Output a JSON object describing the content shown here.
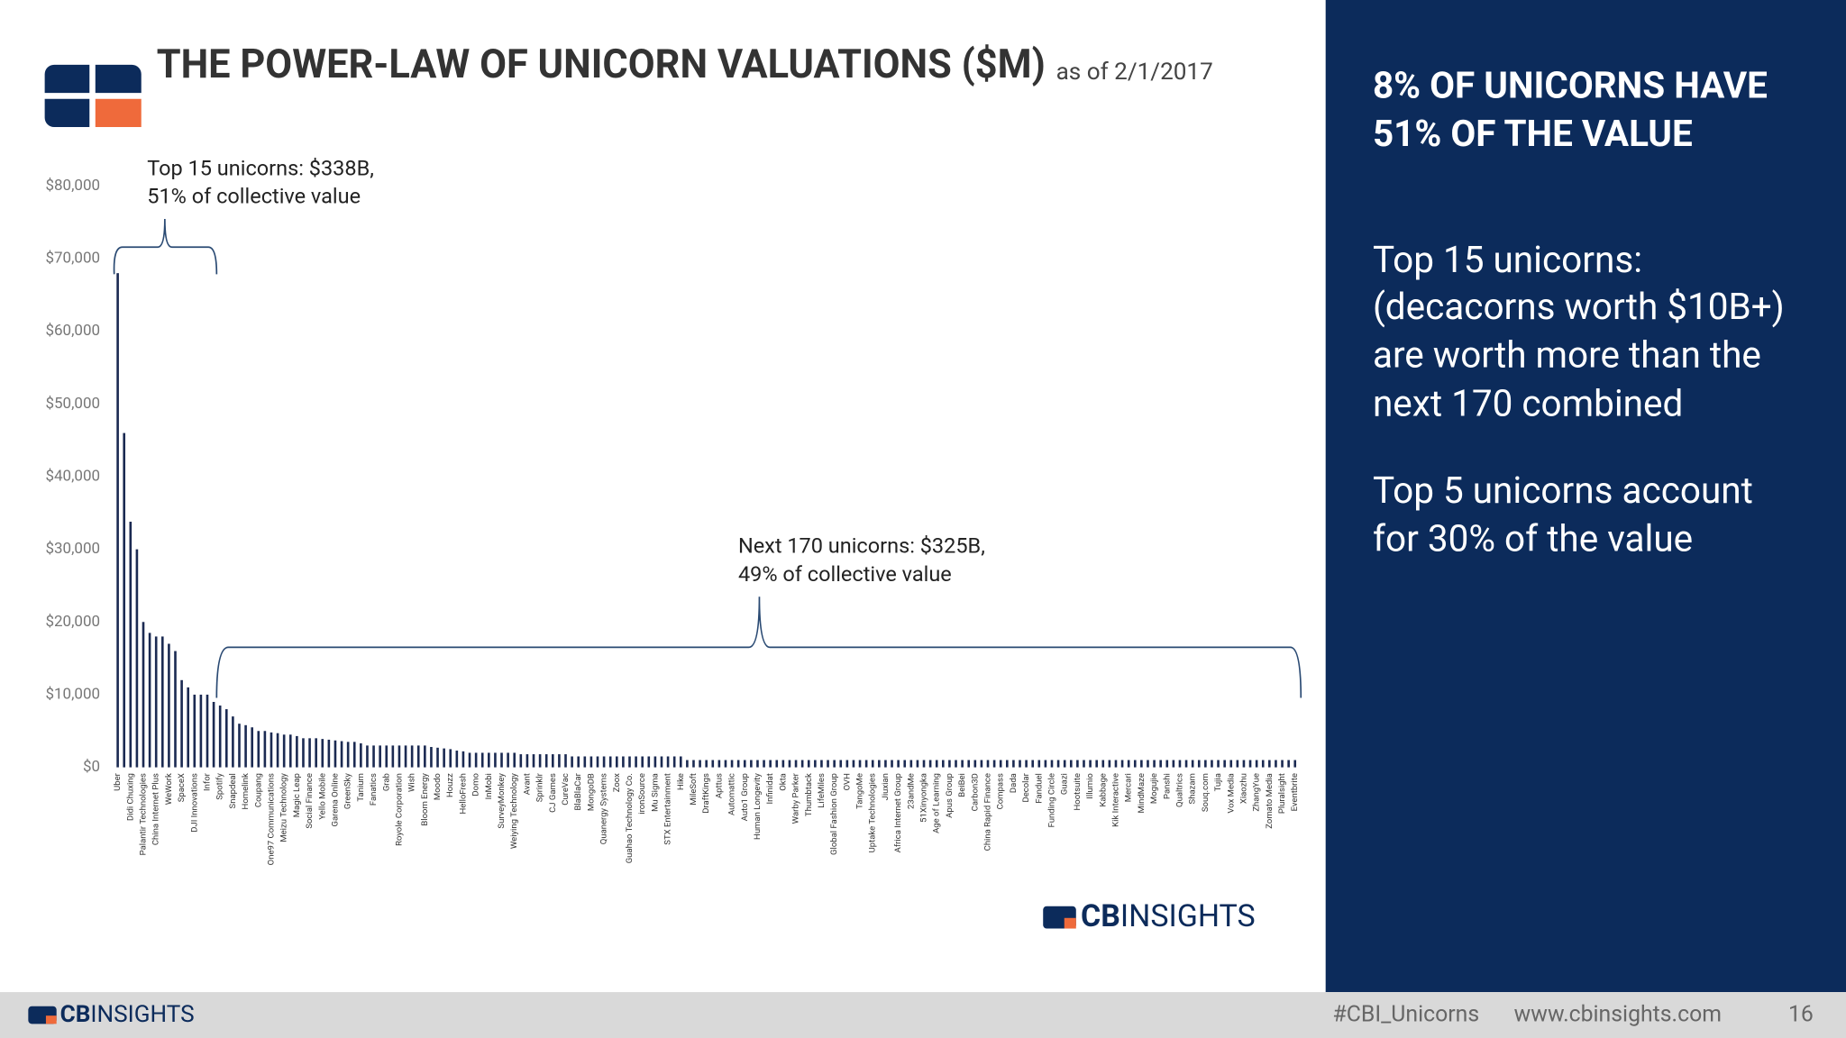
{
  "chart_data": {
    "type": "bar",
    "title": "THE POWER-LAW OF UNICORN VALUATIONS ($M)",
    "subtitle": "as of 2/1/2017",
    "annotations": [
      {
        "lines": [
          "Top 15 unicorns: $338B,",
          "51% of collective value"
        ]
      },
      {
        "lines": [
          "Next 170 unicorns: $325B,",
          "49% of collective value"
        ]
      }
    ],
    "color": "#1b2a52",
    "ylim": [
      0,
      80000
    ],
    "yticks": [
      {
        "value": 0,
        "label": "$0"
      },
      {
        "value": 10000,
        "label": "$10,000"
      },
      {
        "value": 20000,
        "label": "$20,000"
      },
      {
        "value": 30000,
        "label": "$30,000"
      },
      {
        "value": 40000,
        "label": "$40,000"
      },
      {
        "value": 50000,
        "label": "$50,000"
      },
      {
        "value": 60000,
        "label": "$60,000"
      },
      {
        "value": 70000,
        "label": "$70,000"
      },
      {
        "value": 80000,
        "label": "$80,000"
      }
    ],
    "categories": [
      "Uber",
      null,
      "Didi Chuxing",
      null,
      "Palantir Technologies",
      null,
      "China Internet Plus",
      null,
      "WeWork",
      null,
      "SpaceX",
      null,
      "DJI Innovations",
      null,
      "Infor",
      null,
      "Spotify",
      null,
      "Snapdeal",
      null,
      "Homelink",
      null,
      "Coupang",
      null,
      "One97 Communications",
      null,
      "Meizu Technology",
      null,
      "Magic Leap",
      null,
      "Social Finance",
      null,
      "Yello Mobile",
      null,
      "Garena Online",
      null,
      "GreenSky",
      null,
      "Tanium",
      null,
      "Fanatics",
      null,
      "Grab",
      null,
      "Royole Corporation",
      null,
      "Wish",
      null,
      "Bloom Energy",
      null,
      "Moodo",
      null,
      "Houzz",
      null,
      "HelloFresh",
      null,
      "Domo",
      null,
      "InMobi",
      null,
      "SurveyMonkey",
      null,
      "Weiying Technology",
      null,
      "Avant",
      null,
      "Sprinklr",
      null,
      "CJ Games",
      null,
      "CureVac",
      null,
      "BlaBlaCar",
      null,
      "MongoDB",
      null,
      "Quanergy Systems",
      null,
      "Zoox",
      null,
      "Guahao Technology Co.",
      null,
      "ironSource",
      null,
      "Mu Sigma",
      null,
      "STX Entertainment",
      null,
      "Hike",
      null,
      "MileSoft",
      null,
      "DraftKings",
      null,
      "Apttus",
      null,
      "Automattic",
      null,
      "Auto1 Group",
      null,
      "Human Longevity",
      null,
      "Infinidat",
      null,
      "Okta",
      null,
      "Warby Parker",
      null,
      "Thumbtack",
      null,
      "LifeMiles",
      null,
      "Global Fashion Group",
      null,
      "OVH",
      null,
      "TangoMe",
      null,
      "Uptake Technologies",
      null,
      "Jiuxian",
      null,
      "Africa Internet Group",
      null,
      "23andMe",
      null,
      "51Xinyongka",
      null,
      "Age of Learning",
      null,
      "Apus Group",
      null,
      "BeiBei",
      null,
      "Carbon3D",
      null,
      "China Rapid Finance",
      null,
      "Compass",
      null,
      "Dada",
      null,
      "Decolar",
      null,
      "Fanduel",
      null,
      "Funding Circle",
      null,
      "Guazi",
      null,
      "Hootsuite",
      null,
      "Illumio",
      null,
      "Kabbage",
      null,
      "Kik Interactive",
      null,
      "Mercari",
      null,
      "MindMaze",
      null,
      "Mogujie",
      null,
      "Panshi",
      null,
      "Qualtrics",
      null,
      "Shazam",
      null,
      "Souq.com",
      null,
      "Tujia",
      null,
      "Vox Media",
      null,
      "Xiaozhu",
      null,
      "ZhangYue",
      null,
      "Zomato Media",
      null,
      "Pluralsight",
      null,
      "Eventbrite"
    ],
    "values": [
      68000,
      46000,
      33800,
      30000,
      20000,
      18500,
      18000,
      18000,
      17000,
      16000,
      12000,
      11000,
      10000,
      10000,
      10000,
      9000,
      8500,
      8000,
      7000,
      6000,
      5800,
      5500,
      5000,
      5000,
      4800,
      4700,
      4500,
      4500,
      4300,
      4000,
      4000,
      4000,
      3900,
      3800,
      3700,
      3600,
      3500,
      3500,
      3300,
      3000,
      3000,
      3000,
      3000,
      3000,
      3000,
      3000,
      3000,
      3000,
      3000,
      2800,
      2700,
      2600,
      2500,
      2300,
      2200,
      2000,
      2000,
      2000,
      2000,
      2000,
      2000,
      2000,
      2000,
      1800,
      1800,
      1800,
      1800,
      1800,
      1800,
      1800,
      1800,
      1500,
      1500,
      1500,
      1500,
      1500,
      1500,
      1500,
      1500,
      1500,
      1500,
      1500,
      1500,
      1500,
      1500,
      1500,
      1500,
      1500,
      1500,
      1000,
      1000,
      1000,
      1000,
      1000,
      1000,
      1000,
      1000,
      1000,
      1000,
      1000,
      1000,
      1000,
      1000,
      1000,
      1000,
      1000,
      1000,
      1000,
      1000,
      1000,
      1000,
      1000,
      1000,
      1000,
      1000,
      1000,
      1000,
      1000,
      1000,
      1000,
      1000,
      1000,
      1000,
      1000,
      1000,
      1000,
      1000,
      1000,
      1000,
      1000,
      1000,
      1000,
      1000,
      1000,
      1000,
      1000,
      1000,
      1000,
      1000,
      1000,
      1000,
      1000,
      1000,
      1000,
      1000,
      1000,
      1000,
      1000,
      1000,
      1000,
      1000,
      1000,
      1000,
      1000,
      1000,
      1000,
      1000,
      1000,
      1000,
      1000,
      1000,
      1000,
      1000,
      1000,
      1000,
      1000,
      1000,
      1000,
      1000,
      1000,
      1000,
      1000,
      1000,
      1000,
      1000,
      1000,
      1000,
      1000,
      1000,
      1000,
      1000,
      1000,
      1000,
      1000,
      1000
    ]
  },
  "side_panel": {
    "heading": [
      "8% OF UNICORNS HAVE",
      "51% OF THE VALUE"
    ],
    "paragraphs": [
      [
        "Top 15 unicorns:",
        "(decacorns worth $10B+)",
        "are worth more than the",
        "next 170 combined"
      ],
      [
        "Top 5 unicorns account",
        "for 30% of the value"
      ]
    ]
  },
  "brand": {
    "bold": "CB",
    "light": "INSIGHTS"
  },
  "footer": {
    "hashtag": "#CBI_Unicorns",
    "url": "www.cbinsights.com",
    "page": "16"
  }
}
